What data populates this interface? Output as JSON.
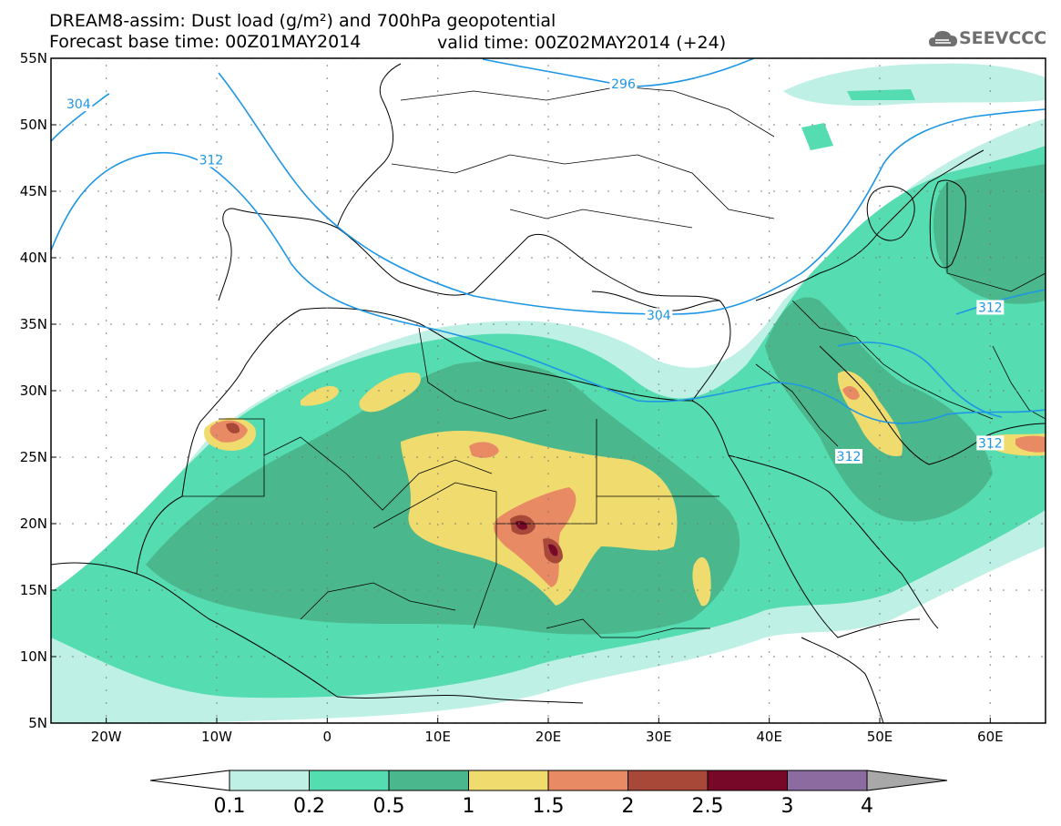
{
  "header": {
    "title_line1": "DREAM8-assim: Dust load (g/m²) and 700hPa geopotential",
    "title_line2": "Forecast base time: 00Z01MAY2014",
    "valid_time": "valid time: 00Z02MAY2014 (+24)",
    "logo_text": "SEEVCCC",
    "logo_icon": "cloud-logo-icon"
  },
  "map": {
    "lat_labels": [
      "55N",
      "50N",
      "45N",
      "40N",
      "35N",
      "30N",
      "25N",
      "20N",
      "15N",
      "10N",
      "5N"
    ],
    "lon_labels": [
      "20W",
      "10W",
      "0",
      "10E",
      "20E",
      "30E",
      "40E",
      "50E",
      "60E"
    ],
    "lat_values": [
      55,
      50,
      45,
      40,
      35,
      30,
      25,
      20,
      15,
      10,
      5
    ],
    "lon_values": [
      -20,
      -10,
      0,
      10,
      20,
      30,
      40,
      50,
      60
    ],
    "lon_range": [
      -25,
      65
    ],
    "lat_range": [
      5,
      55
    ],
    "grid": true,
    "contour_labels": [
      {
        "text": "304",
        "lon": -22.5,
        "lat": 51.5
      },
      {
        "text": "312",
        "lon": -10.5,
        "lat": 47.3
      },
      {
        "text": "296",
        "lon": 26.8,
        "lat": 53.0
      },
      {
        "text": "304",
        "lon": 30.0,
        "lat": 35.6
      },
      {
        "text": "312",
        "lon": 47.2,
        "lat": 25.0
      },
      {
        "text": "312",
        "lon": 60.0,
        "lat": 36.2
      },
      {
        "text": "312",
        "lon": 60.0,
        "lat": 26.0
      }
    ]
  },
  "colorbar": {
    "labels": [
      "0.1",
      "0.2",
      "0.5",
      "1",
      "1.5",
      "2",
      "2.5",
      "3",
      "4"
    ],
    "colors": [
      "#bff0e6",
      "#55dcb0",
      "#4ab88c",
      "#f0dc6e",
      "#e88a64",
      "#a84838",
      "#780828",
      "#8c6ca0"
    ],
    "low_color": "#ffffff",
    "high_color": "#a8a8a8"
  },
  "colors": {
    "contour": "#1e96e6",
    "border": "#000000"
  }
}
